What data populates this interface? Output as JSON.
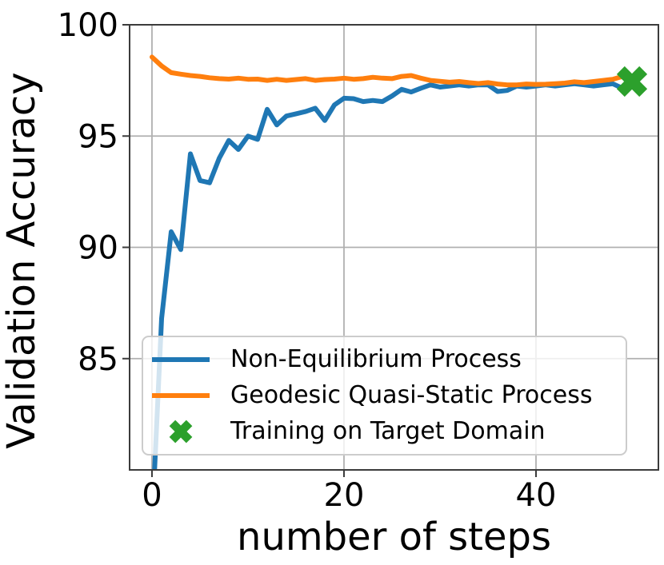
{
  "chart_data": {
    "type": "line",
    "title": "",
    "xlabel": "number of steps",
    "ylabel": "Validation Accuracy",
    "xlim": [
      -2.33,
      52.75
    ],
    "ylim": [
      80,
      100
    ],
    "xticks": [
      0,
      20,
      40
    ],
    "xtick_labels": [
      "0",
      "20",
      "40"
    ],
    "yticks": [
      85,
      90,
      95,
      100
    ],
    "ytick_labels": [
      "85",
      "90",
      "95",
      "100"
    ],
    "grid": true,
    "legend_position": "lower-left-inside",
    "x": [
      0,
      1,
      2,
      3,
      4,
      5,
      6,
      7,
      8,
      9,
      10,
      11,
      12,
      13,
      14,
      15,
      16,
      17,
      18,
      19,
      20,
      21,
      22,
      23,
      24,
      25,
      26,
      27,
      28,
      29,
      30,
      31,
      32,
      33,
      34,
      35,
      36,
      37,
      38,
      39,
      40,
      41,
      42,
      43,
      44,
      45,
      46,
      47,
      48,
      49,
      50
    ],
    "series": [
      {
        "name": "Non-Equilibrium Process",
        "color": "#1f77b4",
        "values": [
          77.5,
          86.8,
          90.7,
          89.9,
          94.2,
          93.0,
          92.9,
          94.0,
          94.8,
          94.4,
          95.0,
          94.85,
          96.2,
          95.5,
          95.9,
          96.0,
          96.1,
          96.25,
          95.7,
          96.4,
          96.7,
          96.68,
          96.55,
          96.6,
          96.55,
          96.8,
          97.1,
          96.98,
          97.15,
          97.3,
          97.2,
          97.25,
          97.3,
          97.25,
          97.3,
          97.3,
          97.0,
          97.05,
          97.25,
          97.2,
          97.25,
          97.3,
          97.25,
          97.3,
          97.35,
          97.3,
          97.25,
          97.3,
          97.35,
          97.15,
          97.3
        ]
      },
      {
        "name": "Geodesic Quasi-Static Process",
        "color": "#ff7f0e",
        "values": [
          98.55,
          98.15,
          97.85,
          97.78,
          97.72,
          97.68,
          97.62,
          97.58,
          97.56,
          97.6,
          97.55,
          97.56,
          97.5,
          97.55,
          97.5,
          97.54,
          97.58,
          97.5,
          97.54,
          97.56,
          97.6,
          97.55,
          97.58,
          97.64,
          97.6,
          97.58,
          97.68,
          97.72,
          97.6,
          97.5,
          97.46,
          97.42,
          97.45,
          97.4,
          97.36,
          97.4,
          97.34,
          97.3,
          97.3,
          97.34,
          97.32,
          97.33,
          97.35,
          97.38,
          97.44,
          97.4,
          97.45,
          97.5,
          97.55,
          97.68,
          97.45
        ]
      }
    ],
    "marker": {
      "name": "Training on Target Domain",
      "color": "#2ca02c",
      "shape": "X",
      "x": 50,
      "y": 97.45
    }
  }
}
